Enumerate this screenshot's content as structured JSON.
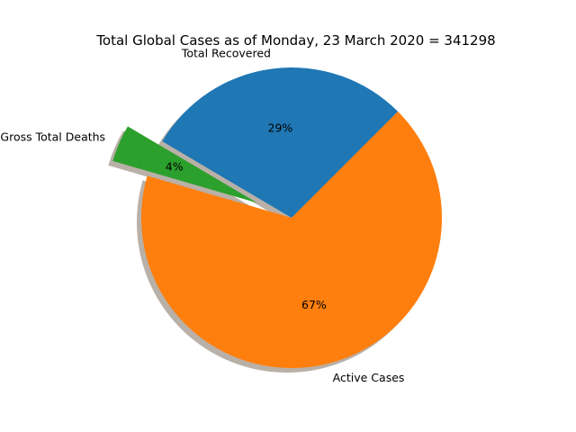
{
  "chart_data": {
    "type": "pie",
    "title": "Total Global Cases as of Monday, 23 March 2020 = 341298",
    "slices": [
      {
        "label": "Total Recovered",
        "value": 29,
        "pct_label": "29%",
        "color": "#1f77b4",
        "explode": 0
      },
      {
        "label": "Gross Total Deaths",
        "value": 4,
        "pct_label": "4%",
        "color": "#2ca02c",
        "explode": 0.25
      },
      {
        "label": "Active Cases",
        "value": 67,
        "pct_label": "67%",
        "color": "#ff7f0e",
        "explode": 0
      }
    ],
    "shadow": true
  }
}
